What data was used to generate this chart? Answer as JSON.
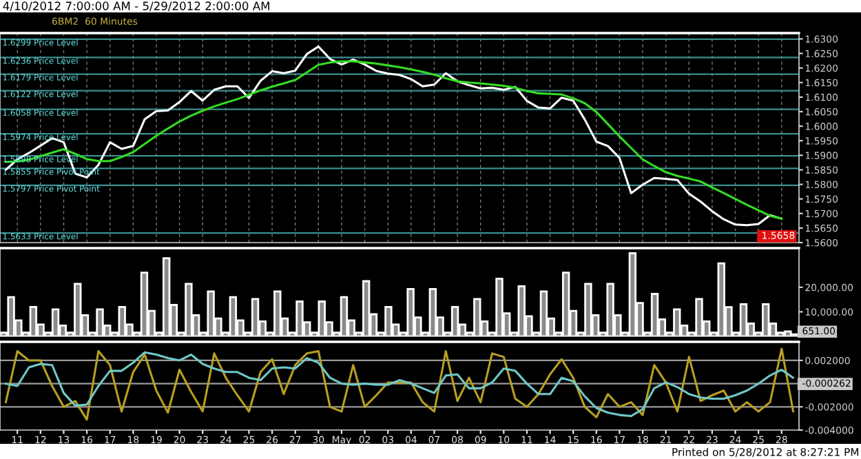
{
  "chart_data": [
    {
      "type": "line",
      "title": "4/10/2012 7:00:00 AM - 5/29/2012 2:00:00 AM",
      "subtitle": "6BM2  60 Minutes",
      "grid": "x",
      "tick_labels": "y",
      "categories": [
        null,
        null,
        null,
        null,
        null,
        null,
        null,
        null,
        null,
        null,
        null,
        null,
        null,
        null,
        null,
        null,
        null,
        null,
        null,
        null,
        null,
        null,
        null,
        null,
        null,
        null,
        null,
        null,
        null,
        null,
        null,
        null,
        null,
        null,
        null,
        null,
        null,
        null,
        null,
        null,
        null,
        null,
        null,
        null,
        null,
        null,
        null,
        null,
        null,
        null,
        null,
        null,
        null,
        null,
        null,
        null,
        null,
        null,
        null,
        null,
        null,
        null,
        null,
        null,
        null,
        null,
        null,
        null,
        null
      ],
      "ylim": [
        1.56,
        1.632
      ],
      "yticks": [
        {
          "value": 1.56,
          "label": "1.5600"
        },
        {
          "value": 1.565,
          "label": "1.5650"
        },
        {
          "value": 1.57,
          "label": "1.5700"
        },
        {
          "value": 1.575,
          "label": "1.5750"
        },
        {
          "value": 1.58,
          "label": "1.5800"
        },
        {
          "value": 1.585,
          "label": "1.5850"
        },
        {
          "value": 1.59,
          "label": "1.5900"
        },
        {
          "value": 1.595,
          "label": "1.5950"
        },
        {
          "value": 1.6,
          "label": "1.6000"
        },
        {
          "value": 1.605,
          "label": "1.6050"
        },
        {
          "value": 1.61,
          "label": "1.6100"
        },
        {
          "value": 1.615,
          "label": "1.6150"
        },
        {
          "value": 1.62,
          "label": "1.6200"
        },
        {
          "value": 1.625,
          "label": "1.6250"
        },
        {
          "value": 1.63,
          "label": "1.6300"
        }
      ],
      "series": [
        {
          "color": "#ffffff",
          "values": [
            1.585,
            1.5886,
            1.5908,
            1.5933,
            1.5959,
            1.5945,
            1.5837,
            1.5824,
            1.5867,
            1.5945,
            1.5922,
            1.5932,
            1.6024,
            1.6052,
            1.6054,
            1.6083,
            1.6121,
            1.6088,
            1.6125,
            1.6137,
            1.6137,
            1.6097,
            1.6156,
            1.6189,
            1.6182,
            1.6191,
            1.6248,
            1.6274,
            1.6231,
            1.6212,
            1.6229,
            1.6212,
            1.619,
            1.6181,
            1.6176,
            1.6162,
            1.6137,
            1.6143,
            1.6182,
            1.6154,
            1.6141,
            1.613,
            1.6132,
            1.6125,
            1.6135,
            1.6087,
            1.6064,
            1.6061,
            1.6098,
            1.6088,
            1.6023,
            1.5947,
            1.5932,
            1.5891,
            1.577,
            1.5799,
            1.5822,
            1.5819,
            1.5815,
            1.5768,
            1.5741,
            1.5708,
            1.568,
            1.5662,
            1.566,
            1.5664,
            1.5694,
            1.5682,
            null
          ]
        },
        {
          "color": "#33dd22",
          "values": [
            1.5877,
            1.5879,
            1.5885,
            1.5897,
            1.5909,
            1.5921,
            1.5905,
            1.5887,
            1.588,
            1.588,
            1.5894,
            1.5911,
            1.5939,
            1.5967,
            1.5992,
            1.6016,
            1.6036,
            1.6053,
            1.6068,
            1.6081,
            1.6093,
            1.6108,
            1.6123,
            1.6136,
            1.6147,
            1.6159,
            1.6185,
            1.6211,
            1.6219,
            1.6223,
            1.6223,
            1.6219,
            1.6215,
            1.6209,
            1.6203,
            1.6195,
            1.6187,
            1.6177,
            1.6165,
            1.6154,
            1.615,
            1.6147,
            1.6143,
            1.6139,
            1.6132,
            1.6121,
            1.6113,
            1.6111,
            1.6109,
            1.6096,
            1.6079,
            1.6049,
            1.6007,
            1.5965,
            1.5925,
            1.5886,
            1.5863,
            1.5842,
            1.5829,
            1.582,
            1.581,
            1.579,
            1.577,
            1.575,
            1.573,
            1.5711,
            1.5692,
            1.5682,
            null
          ]
        }
      ],
      "ref_lines": [
        {
          "axis": "y",
          "value": 1.6299,
          "label": "1.6299 Price Level",
          "color": "#3a8f8f"
        },
        {
          "axis": "y",
          "value": 1.6236,
          "label": "1.6236 Price Level",
          "color": "#3a8f8f"
        },
        {
          "axis": "y",
          "value": 1.6179,
          "label": "1.6179 Price Level",
          "color": "#3a8f8f"
        },
        {
          "axis": "y",
          "value": 1.6122,
          "label": "1.6122 Price Level",
          "color": "#3a8f8f"
        },
        {
          "axis": "y",
          "value": 1.6058,
          "label": "1.6058 Price Level",
          "color": "#3a8f8f"
        },
        {
          "axis": "y",
          "value": 1.5974,
          "label": "1.5974 Price Level",
          "color": "#3a8f8f"
        },
        {
          "axis": "y",
          "value": 1.5898,
          "label": "1.5898 Price Level",
          "color": "#3a8f8f"
        },
        {
          "axis": "y",
          "value": 1.5855,
          "label": "1.5855 Price Pivot Point",
          "color": "#3a8f8f"
        },
        {
          "axis": "y",
          "value": 1.5797,
          "label": "1.5797 Price Pivot Point",
          "color": "#3a8f8f"
        },
        {
          "axis": "y",
          "value": 1.5633,
          "label": "1.5633 Price Level",
          "color": "#3a8f8f"
        }
      ],
      "annotations": [
        "1.5658"
      ]
    },
    {
      "type": "bar",
      "tick_labels": "y",
      "color": "#8a8a8a",
      "categories": [
        null,
        null,
        null,
        null,
        null,
        null,
        null,
        null,
        null,
        null,
        null,
        null,
        null,
        null,
        null,
        null,
        null,
        null,
        null,
        null,
        null,
        null,
        null,
        null,
        null,
        null,
        null,
        null,
        null,
        null,
        null,
        null,
        null,
        null,
        null,
        null,
        null,
        null,
        null,
        null,
        null,
        null,
        null,
        null,
        null,
        null,
        null,
        null,
        null,
        null,
        null,
        null,
        null,
        null,
        null,
        null,
        null,
        null,
        null,
        null,
        null,
        null,
        null,
        null,
        null,
        null,
        null,
        null,
        null,
        null,
        null,
        null,
        null,
        null,
        null,
        null,
        null,
        null,
        null,
        null,
        null,
        null,
        null,
        null,
        null,
        null,
        null,
        null,
        null,
        null,
        null,
        null,
        null,
        null,
        null,
        null,
        null,
        null,
        null,
        null,
        null,
        null,
        null,
        null,
        null,
        null,
        null,
        null
      ],
      "values": [
        1500,
        16000,
        6500,
        1500,
        12000,
        4800,
        1500,
        11000,
        4400,
        1500,
        21400,
        8600,
        1500,
        11000,
        4400,
        1500,
        12000,
        4800,
        1500,
        26000,
        10400,
        1500,
        31900,
        12800,
        1500,
        21400,
        8600,
        1500,
        18300,
        7300,
        1500,
        16000,
        6500,
        1500,
        15200,
        6100,
        1500,
        18300,
        7300,
        1500,
        14200,
        5700,
        1500,
        14200,
        5700,
        1500,
        16000,
        6500,
        1500,
        22500,
        9000,
        1500,
        12000,
        4800,
        1500,
        19300,
        7700,
        1500,
        19300,
        7700,
        1500,
        12000,
        4800,
        1500,
        15200,
        6100,
        1500,
        23500,
        9400,
        1500,
        20400,
        8200,
        1500,
        18300,
        7300,
        1500,
        26000,
        10400,
        1500,
        21400,
        8600,
        1500,
        21400,
        8600,
        1500,
        33900,
        13600,
        1500,
        17300,
        6900,
        1500,
        11000,
        4400,
        1500,
        15200,
        6100,
        1500,
        29800,
        11900,
        1500,
        13100,
        5200,
        1500,
        13100,
        5200,
        1500,
        2000,
        800
      ],
      "ylim": [
        0,
        36000
      ],
      "yticks": [
        {
          "value": 10000,
          "label": "10,000.00"
        },
        {
          "value": 20000,
          "label": "20,000.00"
        }
      ],
      "annotations": [
        "651.00"
      ]
    },
    {
      "type": "line",
      "categories": [
        null,
        "11",
        null,
        "12",
        null,
        "13",
        null,
        "16",
        null,
        "17",
        null,
        "18",
        null,
        "19",
        null,
        "20",
        null,
        "23",
        null,
        "24",
        null,
        "25",
        null,
        "26",
        null,
        "27",
        null,
        "30",
        null,
        "May",
        null,
        "02",
        null,
        "03",
        null,
        "04",
        null,
        "07",
        null,
        "08",
        null,
        "09",
        null,
        "10",
        null,
        "11",
        null,
        "14",
        null,
        "15",
        null,
        "16",
        null,
        "17",
        null,
        "18",
        null,
        "21",
        null,
        "22",
        null,
        "23",
        null,
        "24",
        null,
        "25",
        null,
        "28",
        null
      ],
      "ylim": [
        -0.004,
        0.0036
      ],
      "yticks": [
        {
          "value": 0.002,
          "label": "0.002000"
        },
        {
          "value": -0.002,
          "label": "-0.002000"
        },
        {
          "value": -0.004,
          "label": "-0.004000"
        }
      ],
      "series": [
        {
          "color": "#b8a020",
          "values": [
            -0.0016,
            0.0028,
            0.002,
            0.002,
            -0.0002,
            -0.002,
            -0.0015,
            -0.0031,
            0.0028,
            0.0016,
            -0.0024,
            0.001,
            0.0025,
            -0.0006,
            -0.0025,
            0.0012,
            -0.0007,
            -0.0024,
            0.0026,
            0.0005,
            -0.001,
            -0.0024,
            0.001,
            0.0021,
            -0.0009,
            0.0016,
            0.0026,
            0.0028,
            -0.002,
            -0.0024,
            0.0016,
            -0.002,
            -0.001,
            0.0001,
            0.0001,
            0.0001,
            -0.0016,
            -0.0024,
            0.0028,
            -0.0015,
            0.0005,
            -0.0016,
            0.0026,
            0.0023,
            -0.0013,
            -0.002,
            -0.0009,
            0.0008,
            0.0021,
            0.0005,
            -0.002,
            -0.0029,
            -0.0009,
            -0.002,
            -0.0016,
            -0.0027,
            0.0016,
            0.0001,
            -0.0024,
            0.0023,
            -0.0015,
            -0.001,
            -0.0006,
            -0.0024,
            -0.0016,
            -0.0024,
            -0.0016,
            0.003,
            -0.0024
          ]
        },
        {
          "color": "#70c8c8",
          "values": [
            0.0,
            -0.0002,
            0.0014,
            0.0017,
            0.0016,
            -0.0008,
            -0.0019,
            -0.0018,
            -0.0002,
            0.0011,
            0.0011,
            0.0018,
            0.0027,
            0.0025,
            0.0022,
            0.002,
            0.0025,
            0.0017,
            0.0013,
            0.001,
            0.001,
            0.0005,
            0.0003,
            0.0013,
            0.0014,
            0.0013,
            0.0022,
            0.0018,
            0.0005,
            0.0,
            -0.0001,
            0.0,
            -0.0001,
            -0.0001,
            0.0003,
            0.0,
            -0.0004,
            -0.0008,
            0.0007,
            0.0008,
            -0.0004,
            -0.0004,
            0.0001,
            0.0013,
            0.0011,
            0.0,
            -0.0009,
            -0.0009,
            0.0005,
            0.0002,
            -0.0011,
            -0.0021,
            -0.0025,
            -0.0027,
            -0.0028,
            -0.0022,
            -0.0004,
            0.0001,
            -0.0003,
            -0.0009,
            -0.0012,
            -0.0013,
            -0.0013,
            -0.001,
            -0.0006,
            0.0,
            0.0007,
            0.0012,
            0.0005
          ]
        }
      ],
      "ref_lines": [
        {
          "axis": "y",
          "value": 0.002,
          "color": "#9a9a9a"
        },
        {
          "axis": "y",
          "value": 0,
          "color": "#9a9a9a"
        },
        {
          "axis": "y",
          "value": -0.002,
          "color": "#9a9a9a"
        }
      ],
      "annotations": [
        "-0.000262",
        "Printed on 5/28/2012 at 8:27:21 PM"
      ]
    }
  ]
}
